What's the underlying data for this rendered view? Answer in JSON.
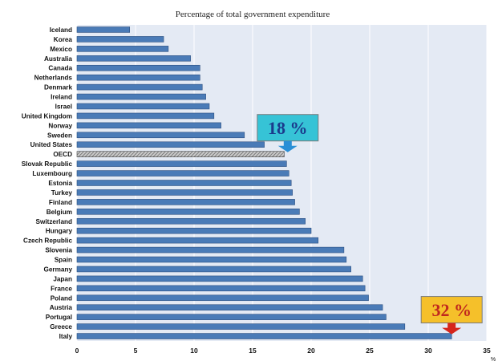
{
  "chart_data": {
    "type": "bar",
    "orientation": "horizontal",
    "title": "Percentage of total government expenditure",
    "xlabel": "",
    "ylabel": "",
    "x_unit": "%",
    "xlim": [
      0,
      35
    ],
    "x_ticks": [
      0,
      5,
      10,
      15,
      20,
      25,
      30,
      35
    ],
    "grid": true,
    "categories": [
      "Iceland",
      "Korea",
      "Mexico",
      "Australia",
      "Canada",
      "Netherlands",
      "Denmark",
      "Ireland",
      "Israel",
      "United Kingdom",
      "Norway",
      "Sweden",
      "United States",
      "OECD",
      "Slovak Republic",
      "Luxembourg",
      "Estonia",
      "Turkey",
      "Finland",
      "Belgium",
      "Switzerland",
      "Hungary",
      "Czech Republic",
      "Slovenia",
      "Spain",
      "Germany",
      "Japan",
      "France",
      "Poland",
      "Austria",
      "Portugal",
      "Greece",
      "Italy"
    ],
    "values": [
      4.5,
      7.4,
      7.8,
      9.7,
      10.5,
      10.5,
      10.7,
      11.0,
      11.3,
      11.7,
      12.3,
      14.3,
      16.0,
      17.7,
      17.9,
      18.1,
      18.3,
      18.4,
      18.6,
      19.0,
      19.5,
      20.0,
      20.6,
      22.8,
      23.0,
      23.4,
      24.4,
      24.6,
      24.9,
      26.1,
      26.4,
      28.0,
      32.0
    ],
    "highlight": "OECD",
    "colors": {
      "bar": "#4a7bb7",
      "bar_edge": "#2c4f80",
      "highlight_bar": "#8a8a8a",
      "plot_background": "#e4eaf4",
      "grid": "#ffffff"
    },
    "annotations": [
      {
        "text": "18 %",
        "category": "OECD",
        "value": 18,
        "background": "#36c3d6",
        "text_color": "#1b3a8c",
        "arrow_color": "#2a8fd6"
      },
      {
        "text": "32 %",
        "category": "Italy",
        "value": 32,
        "background": "#f5c02a",
        "text_color": "#c0281e",
        "arrow_color": "#d6261c"
      }
    ]
  }
}
